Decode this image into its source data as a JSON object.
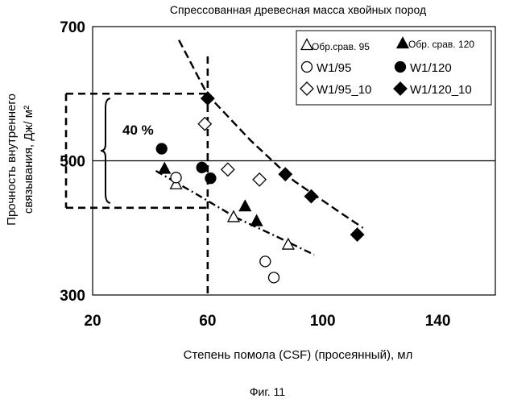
{
  "chart_data": {
    "type": "scatter",
    "title": "Спрессованная древесная масса хвойных пород",
    "xlabel": "Степень помола  (CSF) (просеянный), мл",
    "ylabel": [
      "Прочность внутреннего",
      "связывания, Дж/ м²"
    ],
    "xlim": [
      20,
      160
    ],
    "ylim": [
      300,
      700
    ],
    "xticks": [
      "20",
      "60",
      "100",
      "140"
    ],
    "yticks": [
      "300",
      "500",
      "700"
    ],
    "grid": "horizontal line at 500",
    "legend_position": "top-right",
    "series": [
      {
        "name": "Обр.срав. 95",
        "marker": "triangle-open",
        "points": [
          [
            49,
            465
          ],
          [
            69,
            416
          ],
          [
            88,
            375
          ]
        ]
      },
      {
        "name": "Обр. срав. 120",
        "marker": "triangle-filled",
        "points": [
          [
            45,
            488
          ],
          [
            73,
            432
          ],
          [
            77,
            410
          ]
        ]
      },
      {
        "name": "W1/95",
        "marker": "circle-open",
        "points": [
          [
            49,
            475
          ],
          [
            80,
            350
          ],
          [
            83,
            326
          ]
        ]
      },
      {
        "name": "W1/120",
        "marker": "circle-filled",
        "points": [
          [
            44,
            518
          ],
          [
            58,
            490
          ],
          [
            61,
            474
          ]
        ]
      },
      {
        "name": "W1/95_10",
        "marker": "diamond-open",
        "points": [
          [
            59,
            555
          ],
          [
            67,
            487
          ],
          [
            78,
            472
          ]
        ]
      },
      {
        "name": "W1/120_10",
        "marker": "diamond-filled",
        "points": [
          [
            60,
            593
          ],
          [
            87,
            480
          ],
          [
            96,
            447
          ],
          [
            112,
            390
          ]
        ]
      }
    ],
    "trendlines": [
      {
        "style": "dash",
        "points": [
          [
            50,
            680
          ],
          [
            60,
            598
          ],
          [
            75,
            530
          ],
          [
            90,
            470
          ],
          [
            105,
            426
          ],
          [
            114,
            400
          ]
        ]
      },
      {
        "style": "dash-dot",
        "points": [
          [
            42,
            485
          ],
          [
            55,
            453
          ],
          [
            70,
            415
          ],
          [
            85,
            385
          ],
          [
            97,
            360
          ]
        ]
      }
    ],
    "reference_lines": {
      "x": 60,
      "y_upper": 600,
      "y_lower": 430
    },
    "annotation": "40 %",
    "figure_caption": "Фиг. 11"
  }
}
